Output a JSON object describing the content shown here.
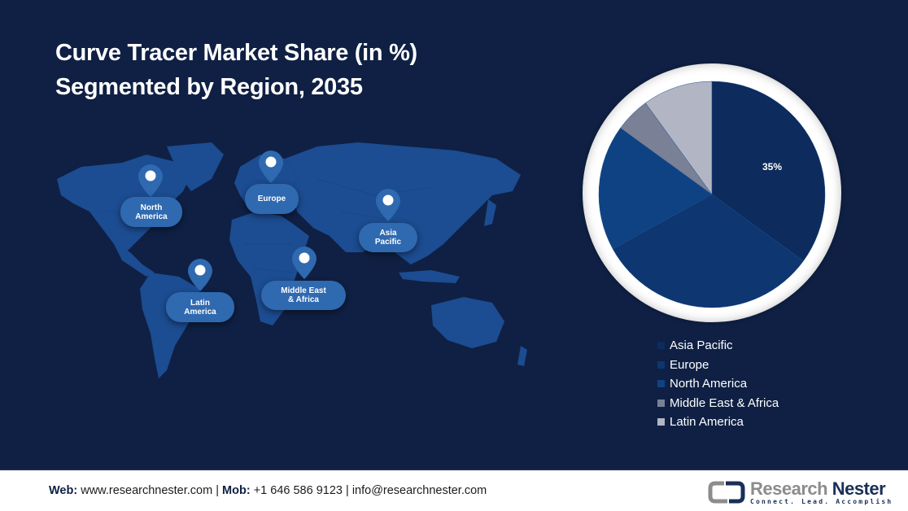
{
  "header": {
    "title_line1": "Curve Tracer Market Share (in %)",
    "title_line2": "Segmented by Region, 2035"
  },
  "map": {
    "regions": [
      {
        "name": "North America",
        "label": "North\nAmerica"
      },
      {
        "name": "Europe",
        "label": "Europe"
      },
      {
        "name": "Asia Pacific",
        "label": "Asia\nPacific"
      },
      {
        "name": "Latin America",
        "label": "Latin\nAmerica"
      },
      {
        "name": "Middle East & Africa",
        "label": "Middle East\n& Africa"
      }
    ],
    "pin_icon": "map-pin-icon",
    "colors": {
      "land": "#1d4f96",
      "label_bg": "#2f69b0",
      "pin": "#2f69b0"
    }
  },
  "chart_data": {
    "type": "pie",
    "title": "Curve Tracer Market Share (in %) Segmented by Region, 2035",
    "categories": [
      "Asia Pacific",
      "Europe",
      "North America",
      "Middle East & Africa",
      "Latin America"
    ],
    "values": [
      35,
      32,
      18,
      5,
      10
    ],
    "colors": [
      "#0d2b5c",
      "#0e3670",
      "#0f4282",
      "#7a8196",
      "#b2b6c4"
    ],
    "data_labels": [
      {
        "category": "Asia Pacific",
        "text": "35%"
      }
    ],
    "legend_position": "bottom-right",
    "unit": "%"
  },
  "legend": {
    "items": [
      {
        "label": "Asia Pacific",
        "color": "#0d2b5c"
      },
      {
        "label": "Europe",
        "color": "#0e3670"
      },
      {
        "label": "North America",
        "color": "#0f4282"
      },
      {
        "label": "Middle East & Africa",
        "color": "#7a8196"
      },
      {
        "label": "Latin America",
        "color": "#b2b6c4"
      }
    ]
  },
  "footer": {
    "web_label": "Web:",
    "web_value": "www.researchnester.com",
    "separator": "|",
    "mob_label": "Mob:",
    "mob_value": "+1 646 586 9123",
    "email": "info@researchnester.com",
    "logo_word1": "Research",
    "logo_word2": "Nester",
    "logo_tagline": "Connect. Lead. Accomplish"
  }
}
